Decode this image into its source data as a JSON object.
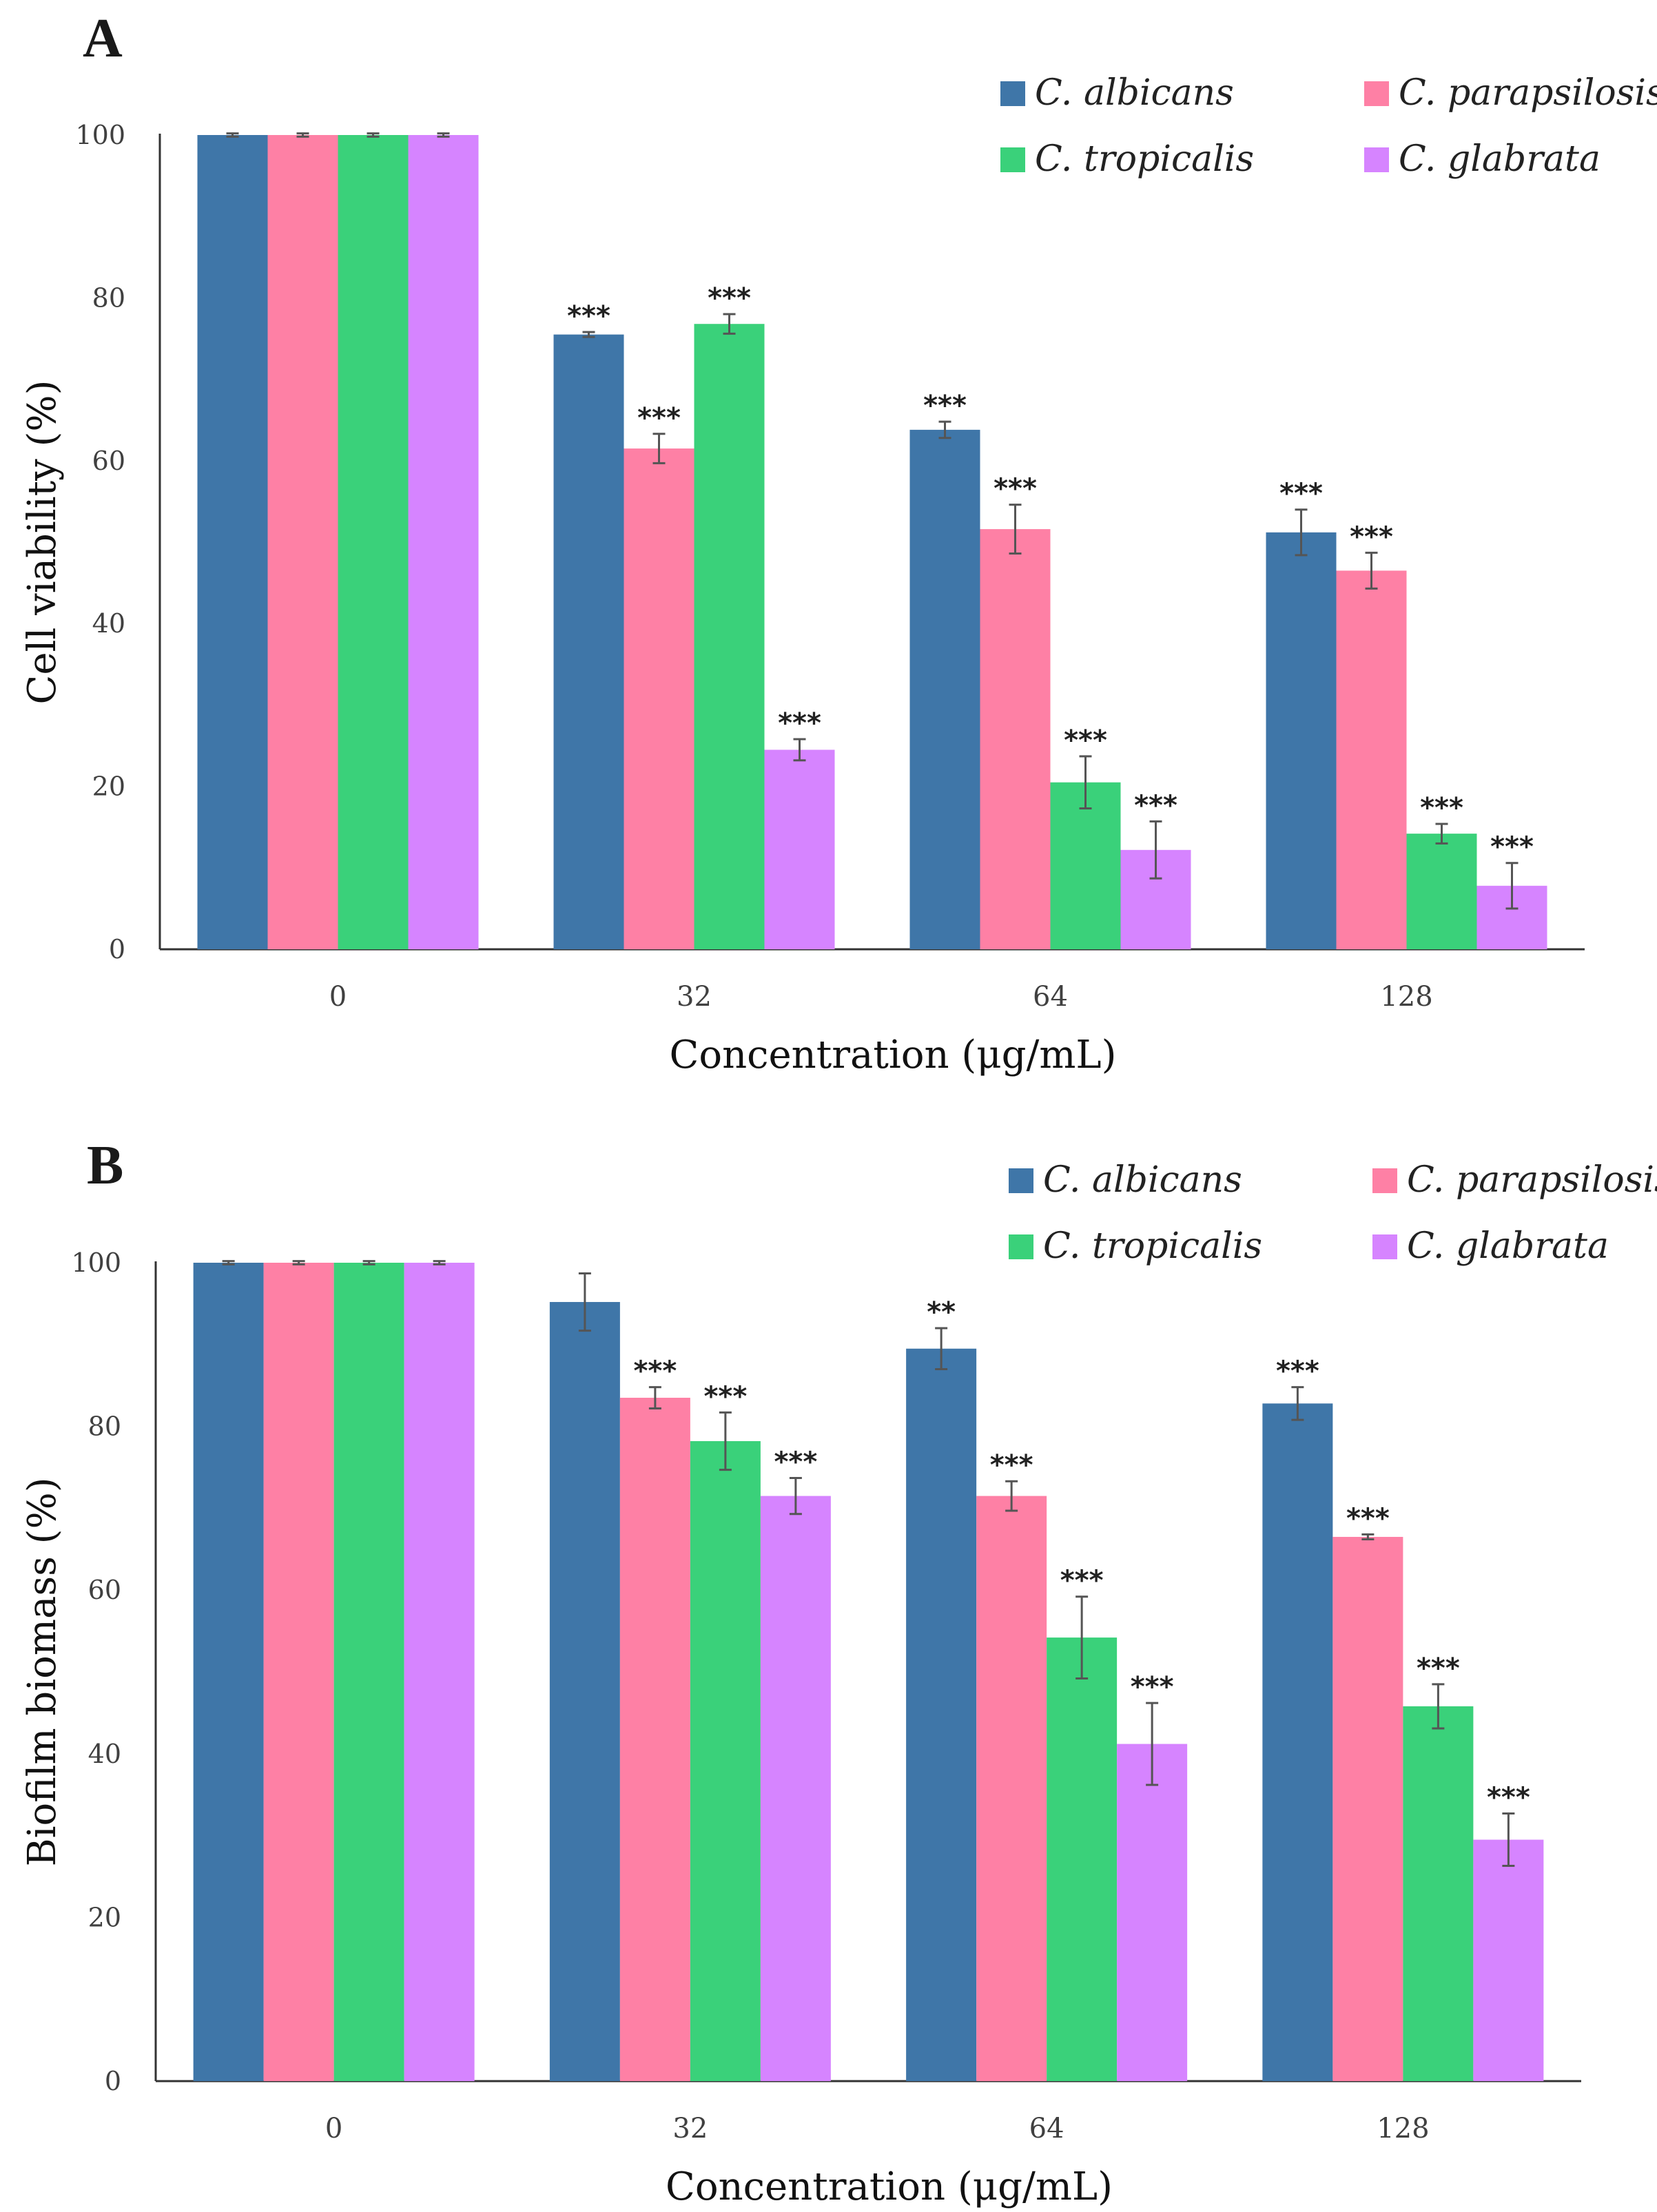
{
  "chart_data": [
    {
      "panel": "A",
      "type": "bar",
      "categories": [
        "0",
        "32",
        "64",
        "128"
      ],
      "xlabel": "Concentration (μg/mL)",
      "ylabel": "Cell viability (%)",
      "ylim": [
        0,
        100
      ],
      "yticks": [
        "0",
        "20",
        "40",
        "60",
        "80",
        "100"
      ],
      "legend_position": "top-right",
      "series": [
        {
          "name": "C. albicans",
          "color": "#3f76a8",
          "values": [
            100,
            75.5,
            63.8,
            51.2
          ],
          "errors": [
            0.2,
            0.3,
            1.0,
            2.8
          ],
          "sig": [
            "",
            "***",
            "***",
            "***"
          ]
        },
        {
          "name": "C. parapsilosis",
          "color": "#fe80a5",
          "values": [
            100,
            61.5,
            51.6,
            46.5
          ],
          "errors": [
            0.2,
            1.8,
            3.0,
            2.2
          ],
          "sig": [
            "",
            "***",
            "***",
            "***"
          ]
        },
        {
          "name": "C. tropicalis",
          "color": "#3ad17a",
          "values": [
            100,
            76.8,
            20.5,
            14.2
          ],
          "errors": [
            0.2,
            1.2,
            3.2,
            1.2
          ],
          "sig": [
            "",
            "***",
            "***",
            "***"
          ]
        },
        {
          "name": "C. glabrata",
          "color": "#d684ff",
          "values": [
            100,
            24.5,
            12.2,
            7.8
          ],
          "errors": [
            0.2,
            1.3,
            3.5,
            2.8
          ],
          "sig": [
            "",
            "***",
            "***",
            "***"
          ]
        }
      ]
    },
    {
      "panel": "B",
      "type": "bar",
      "categories": [
        "0",
        "32",
        "64",
        "128"
      ],
      "xlabel": "Concentration (μg/mL)",
      "ylabel": "Biofilm biomass  (%)",
      "ylim": [
        0,
        100
      ],
      "yticks": [
        "0",
        "20",
        "40",
        "60",
        "80",
        "100"
      ],
      "legend_position": "top-right",
      "series": [
        {
          "name": "C. albicans",
          "color": "#3f76a8",
          "values": [
            100,
            95.2,
            89.5,
            82.8
          ],
          "errors": [
            0.2,
            3.5,
            2.5,
            2.0
          ],
          "sig": [
            "",
            "",
            "**",
            "***"
          ]
        },
        {
          "name": "C. parapsilosis",
          "color": "#fe80a5",
          "values": [
            100,
            83.5,
            71.5,
            66.5
          ],
          "errors": [
            0.2,
            1.3,
            1.8,
            0.3
          ],
          "sig": [
            "",
            "***",
            "***",
            "***"
          ]
        },
        {
          "name": "C. tropicalis",
          "color": "#3ad17a",
          "values": [
            100,
            78.2,
            54.2,
            45.8
          ],
          "errors": [
            0.2,
            3.5,
            5.0,
            2.7
          ],
          "sig": [
            "",
            "***",
            "***",
            "***"
          ]
        },
        {
          "name": "C. glabrata",
          "color": "#d684ff",
          "values": [
            100,
            71.5,
            41.2,
            29.5
          ],
          "errors": [
            0.2,
            2.2,
            5.0,
            3.2
          ],
          "sig": [
            "",
            "***",
            "***",
            "***"
          ]
        }
      ]
    }
  ]
}
